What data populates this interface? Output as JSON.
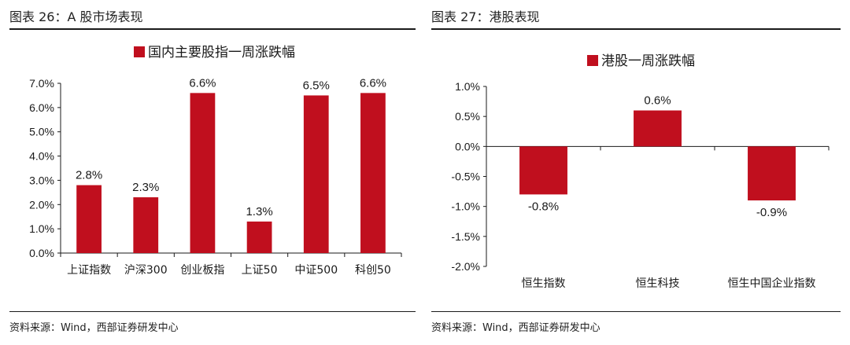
{
  "left_panel": {
    "figure_title": "图表 26：A 股市场表现",
    "source": "资料来源：Wind，西部证券研发中心"
  },
  "right_panel": {
    "figure_title": "图表 27：港股表现",
    "source": "资料来源：Wind，西部证券研发中心"
  },
  "colors": {
    "bar": "#c00f1e",
    "axis": "#1a1a1a"
  },
  "chart_data": [
    {
      "type": "bar",
      "title": "",
      "series": [
        {
          "name": "国内主要股指一周涨跌幅",
          "values": [
            2.8,
            2.3,
            6.6,
            1.3,
            6.5,
            6.6
          ]
        }
      ],
      "categories": [
        "上证指数",
        "沪深300",
        "创业板指",
        "上证50",
        "中证500",
        "科创50"
      ],
      "data_labels": [
        "2.8%",
        "2.3%",
        "6.6%",
        "1.3%",
        "6.5%",
        "6.6%"
      ],
      "y_ticks": [
        "7.0%",
        "6.0%",
        "5.0%",
        "4.0%",
        "3.0%",
        "2.0%",
        "1.0%",
        "0.0%"
      ],
      "ylim": [
        0,
        7
      ],
      "unit": "%",
      "grid": false,
      "legend": "top-center"
    },
    {
      "type": "bar",
      "title": "",
      "series": [
        {
          "name": "港股一周涨跌幅",
          "values": [
            -0.8,
            0.6,
            -0.9
          ]
        }
      ],
      "categories": [
        "恒生指数",
        "恒生科技",
        "恒生中国企业指数"
      ],
      "data_labels": [
        "-0.8%",
        "0.6%",
        "-0.9%"
      ],
      "y_ticks": [
        "1.0%",
        "0.5%",
        "0.0%",
        "-0.5%",
        "-1.0%",
        "-1.5%",
        "-2.0%"
      ],
      "ylim": [
        -2,
        1
      ],
      "unit": "%",
      "grid": false,
      "legend": "top-center"
    }
  ]
}
